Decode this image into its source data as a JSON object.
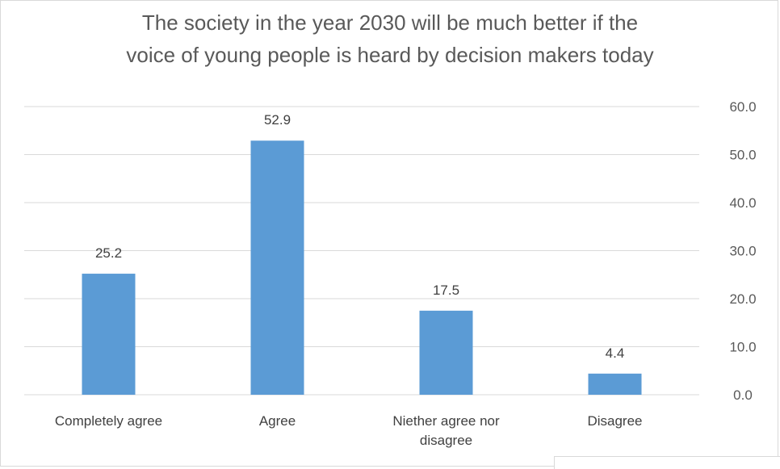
{
  "chart_data": {
    "type": "bar",
    "title_lines": [
      "The society in the year 2030 will be much better if the",
      "voice of young people is heard by decision makers today"
    ],
    "categories": [
      [
        "Completely agree"
      ],
      [
        "Agree"
      ],
      [
        "Niether agree nor",
        "disagree"
      ],
      [
        "Disagree"
      ]
    ],
    "values": [
      25.2,
      52.9,
      17.5,
      4.4
    ],
    "data_labels": [
      "25.2",
      "52.9",
      "17.5",
      "4.4"
    ],
    "ylim": [
      0,
      60
    ],
    "yticks": [
      0,
      10,
      20,
      30,
      40,
      50,
      60
    ],
    "ytick_labels": [
      "0.0",
      "10.0",
      "20.0",
      "30.0",
      "40.0",
      "50.0",
      "60.0"
    ],
    "y_axis_side": "right",
    "grid": true,
    "bar_color": "#5b9bd5",
    "grid_color": "#d9d9d9"
  }
}
